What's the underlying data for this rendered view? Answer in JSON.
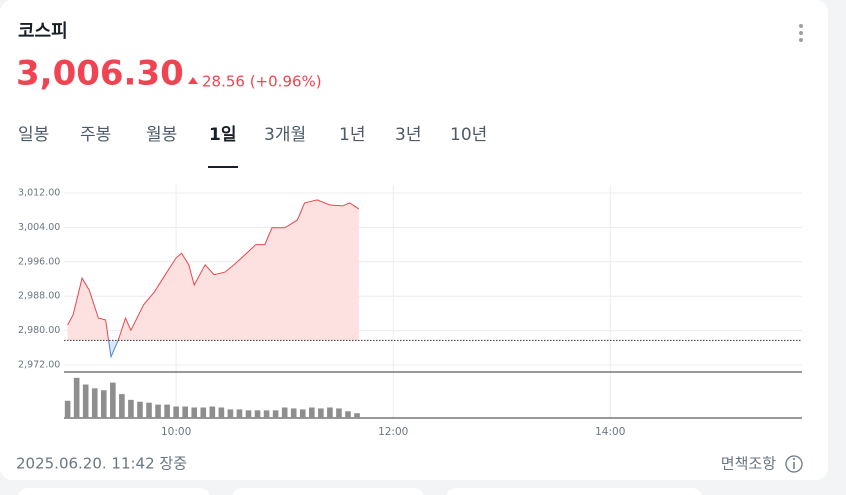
{
  "header": {
    "title": "코스피",
    "price": "3,006.30",
    "change": "28.56 (+0.96%)",
    "color": "#f04452"
  },
  "tabs": {
    "items": [
      "일봉",
      "주봉",
      "월봉",
      "1일",
      "3개월",
      "1년",
      "3년",
      "10년"
    ],
    "selected": 3
  },
  "chart_data": {
    "type": "line",
    "x": [
      540,
      543,
      548,
      552,
      557,
      561,
      564,
      568,
      572,
      575,
      582,
      588,
      594,
      600,
      603,
      607,
      610,
      616,
      621,
      627,
      632,
      638,
      644,
      649,
      653,
      660,
      667,
      671,
      678,
      685,
      692,
      696,
      701
    ],
    "values": [
      2981.3,
      2983.6,
      2992.2,
      2989.4,
      2982.9,
      2982.5,
      2973.9,
      2977.8,
      2982.9,
      2980.1,
      2986,
      2989,
      2993,
      2996.9,
      2998,
      2995.3,
      2990.6,
      2995.3,
      2993,
      2993.6,
      2995.3,
      2997.6,
      3000,
      3000,
      3003.9,
      3003.9,
      3005.7,
      3009.7,
      3010.4,
      3009.2,
      3009,
      3009.7,
      3008.3
    ],
    "baseline": 2977.74,
    "color": "#e5484d",
    "down_color": "#4a86d6",
    "fill": "#fde1e1",
    "down_fill": "#dbe8fa",
    "xlim": [
      538,
      946
    ],
    "xticks": [
      {
        "value": 600,
        "label": "10:00"
      },
      {
        "value": 720,
        "label": "12:00"
      },
      {
        "value": 840,
        "label": "14:00"
      }
    ],
    "ylim": [
      2972,
      3012
    ],
    "yticks": [
      {
        "value": 2972,
        "label": "2,972.00"
      },
      {
        "value": 2980,
        "label": "2,980.00"
      },
      {
        "value": 2988,
        "label": "2,988.00"
      },
      {
        "value": 2996,
        "label": "2,996.00"
      },
      {
        "value": 3004,
        "label": "3,004.00"
      },
      {
        "value": 3012,
        "label": "3,012.00"
      }
    ],
    "grid": true,
    "volume": {
      "x": [
        540,
        545,
        550,
        555,
        560,
        565,
        570,
        575,
        580,
        585,
        590,
        595,
        600,
        605,
        610,
        615,
        620,
        625,
        630,
        635,
        640,
        645,
        650,
        655,
        660,
        665,
        670,
        675,
        680,
        685,
        690,
        695,
        700
      ],
      "values": [
        18,
        42,
        35,
        31,
        29,
        37,
        25,
        19,
        17,
        16,
        14,
        14,
        12,
        12,
        11,
        11,
        12,
        11,
        9,
        9,
        8,
        8,
        8,
        8,
        11,
        10,
        9,
        11,
        10,
        11,
        10,
        7,
        5
      ],
      "ylim": [
        0,
        46
      ],
      "color": "#8e8e8e"
    }
  },
  "footer": {
    "timestamp": "2025.06.20. 11:42 장중",
    "disclaimer": "면책조항"
  }
}
